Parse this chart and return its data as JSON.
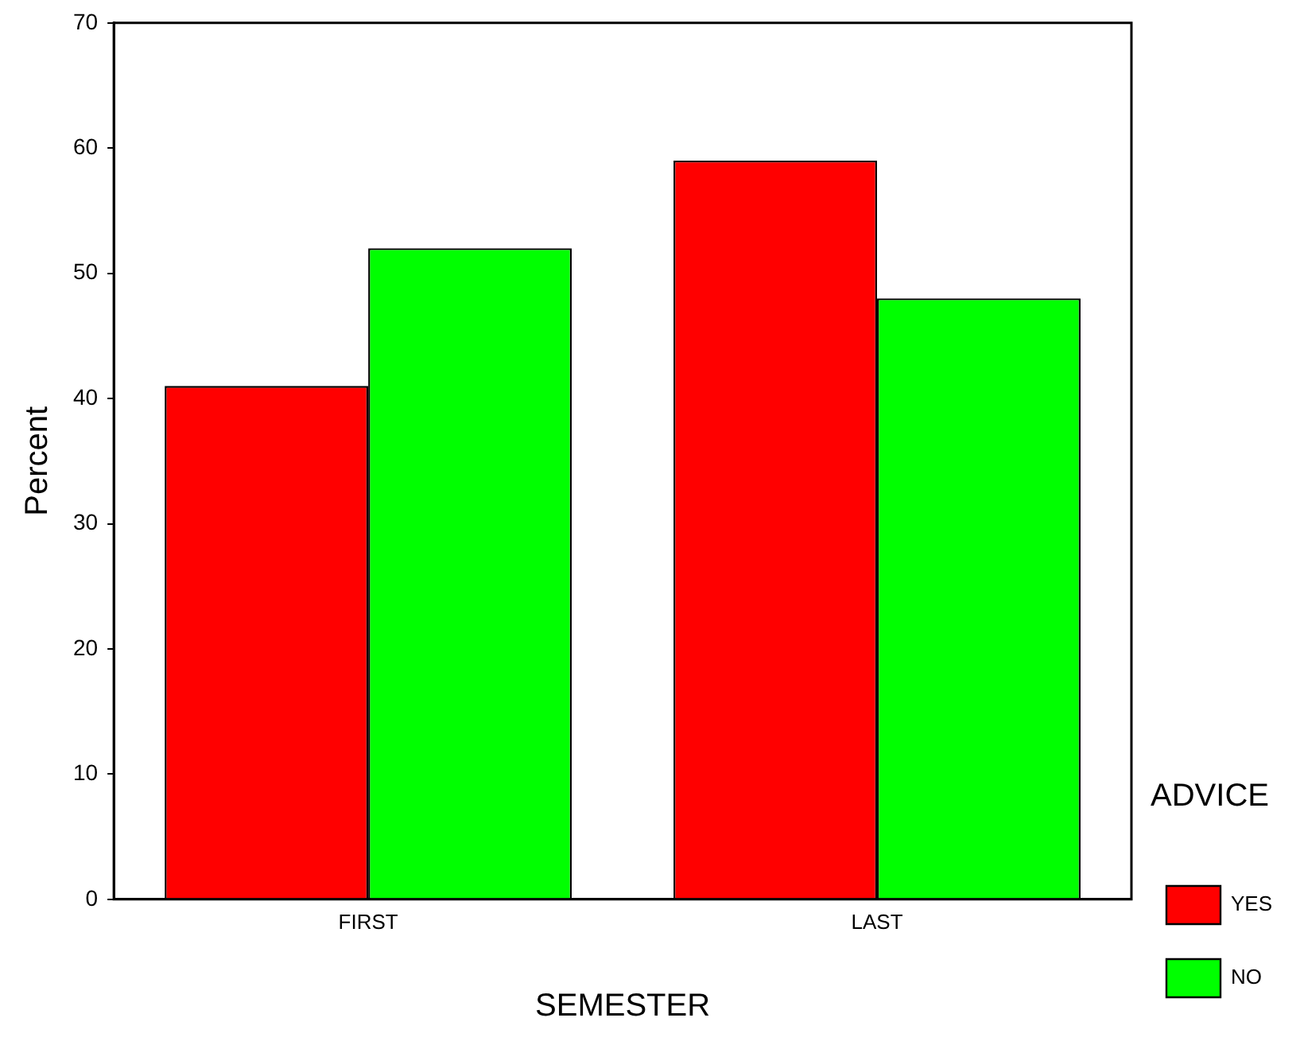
{
  "chart_data": {
    "type": "bar",
    "xlabel": "SEMESTER",
    "ylabel": "Percent",
    "legend_title": "ADVICE",
    "categories": [
      "FIRST",
      "LAST"
    ],
    "series": [
      {
        "name": "YES",
        "color": "#ff0000",
        "values": [
          41,
          59
        ]
      },
      {
        "name": "NO",
        "color": "#00ff00",
        "values": [
          52,
          48
        ]
      }
    ],
    "ylim": [
      0,
      70
    ],
    "yticks": [
      0,
      10,
      20,
      30,
      40,
      50,
      60,
      70
    ],
    "grid": false,
    "legend": "right"
  }
}
